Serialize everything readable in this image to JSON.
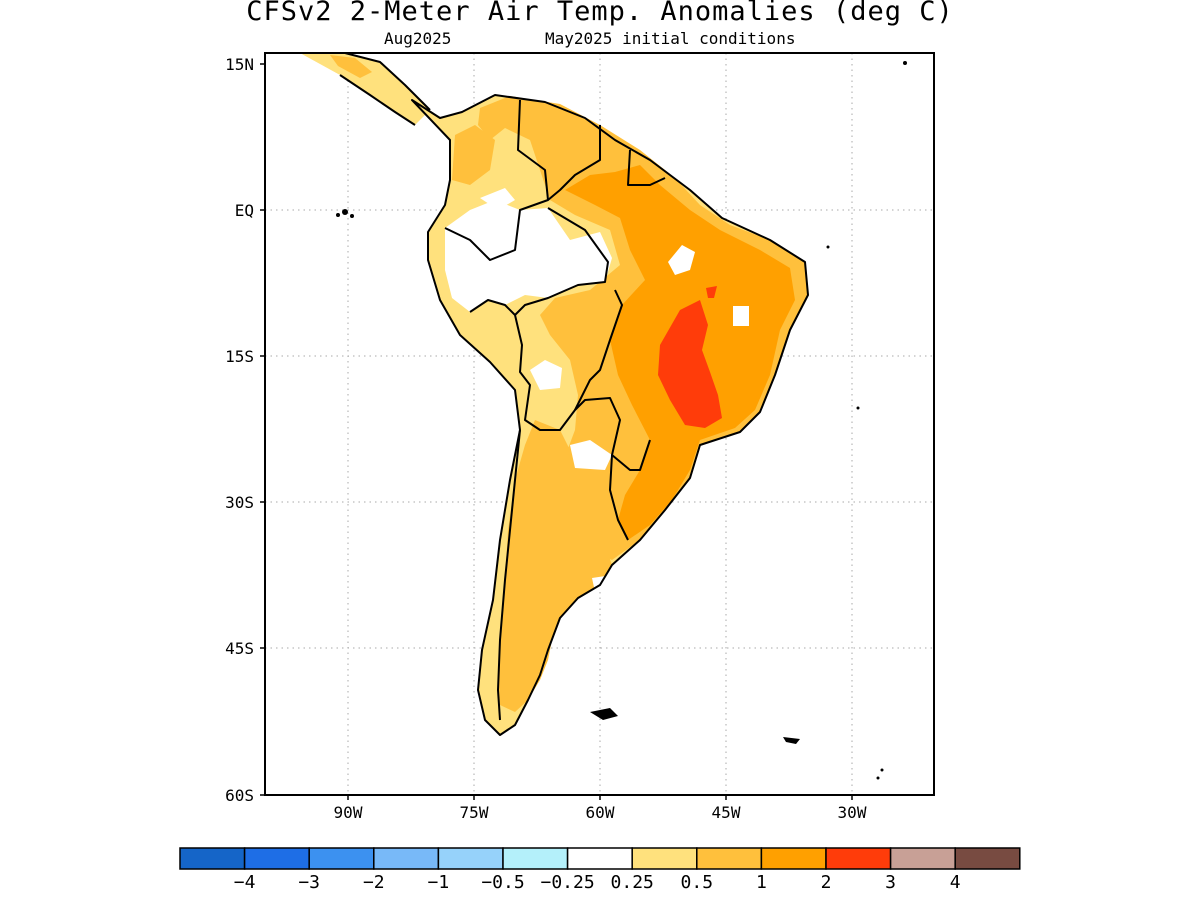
{
  "map": {
    "title": "CFSv2 2-Meter Air Temp. Anomalies (deg C)",
    "valid_month": "Aug2025",
    "initial_conditions": "May2025 initial conditions",
    "units": "deg C",
    "region": "South America",
    "lat_labels": [
      "15N",
      "EQ",
      "15S",
      "30S",
      "45S",
      "60S"
    ],
    "lon_labels": [
      "90W",
      "75W",
      "60W",
      "45W",
      "30W"
    ],
    "grid": "dotted"
  },
  "colorbar": {
    "labels": [
      "−4",
      "−3",
      "−2",
      "−1",
      "−0.5",
      "−0.25",
      "0.25",
      "0.5",
      "1",
      "2",
      "3",
      "4"
    ],
    "colors": [
      "#1565c8",
      "#1e6ee6",
      "#3c91f0",
      "#78b9f8",
      "#96d2fa",
      "#b4f0fa",
      "#ffffff",
      "#ffe17d",
      "#ffc03c",
      "#ffa000",
      "#ff3c0a",
      "#c8a096",
      "#784b41"
    ]
  },
  "anomaly_colors": {
    "land_base": "#ffe17d",
    "anom_0_25": "#ffffff",
    "anom_0_5": "#ffe17d",
    "anom_1": "#ffc03c",
    "anom_2": "#ffa000",
    "anom_3": "#ff3c0a"
  }
}
